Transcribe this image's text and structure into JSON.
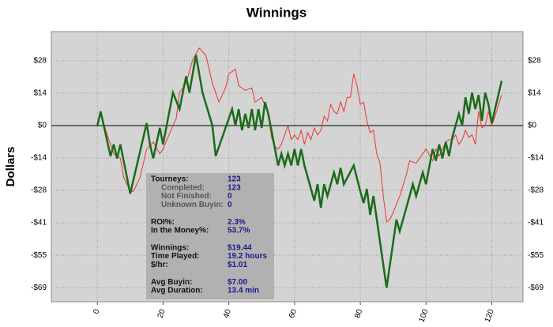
{
  "chart_data": {
    "type": "line",
    "title": "Winnings",
    "y_label": "Dollars",
    "xlim": [
      -14,
      129.5
    ],
    "ylim": [
      -75,
      40
    ],
    "xticks": [
      0,
      20,
      40,
      60,
      80,
      100,
      120
    ],
    "yticks": [
      {
        "value": 27.6,
        "label": "$28"
      },
      {
        "value": 13.8,
        "label": "$14"
      },
      {
        "value": 0,
        "label": "$0"
      },
      {
        "value": -13.8,
        "label": "-$14"
      },
      {
        "value": -27.6,
        "label": "-$28"
      },
      {
        "value": -41.4,
        "label": "-$41"
      },
      {
        "value": -55.2,
        "label": "-$55"
      },
      {
        "value": -69,
        "label": "-$69"
      }
    ],
    "grid": true,
    "series": [
      {
        "color": "#ee3333",
        "width": 1,
        "x": [
          0,
          1,
          3,
          5,
          7,
          8,
          10,
          11,
          13,
          15,
          17,
          19,
          20,
          23,
          24,
          25,
          27,
          29,
          31,
          33,
          35,
          37,
          39,
          40,
          41,
          42,
          43,
          45,
          47,
          48,
          50,
          52,
          53,
          54,
          55,
          56,
          58,
          59,
          60,
          61,
          62,
          63,
          64,
          65,
          66,
          67,
          68,
          69,
          70,
          71,
          72,
          73,
          74,
          75,
          76,
          77,
          78,
          79,
          80,
          81,
          82,
          83,
          84,
          85,
          86,
          87,
          88,
          89,
          90,
          92,
          94,
          95,
          97,
          98,
          100,
          102,
          103,
          104,
          105,
          106,
          107,
          108,
          109,
          110,
          111,
          112,
          113,
          114,
          115,
          116,
          117,
          118,
          119,
          120,
          121,
          123
        ],
        "values": [
          0,
          5,
          -4,
          -12,
          -14,
          -22,
          -28,
          -28,
          -22,
          -10,
          -7,
          -12,
          -10,
          0,
          3,
          14,
          18,
          28,
          33,
          30,
          18,
          10,
          16,
          22,
          23,
          24,
          17,
          15,
          16,
          10,
          12,
          5,
          -5,
          -9,
          -10,
          -8,
          0,
          -6,
          -4,
          -6,
          -2,
          -8,
          -3,
          -6,
          -1,
          -4,
          -2,
          4,
          2,
          9,
          6,
          5,
          10,
          6,
          12,
          12,
          22,
          17,
          9,
          10,
          2,
          -3,
          -2,
          -12,
          -16,
          -30,
          -41,
          -40,
          -37,
          -30,
          -21,
          -15,
          -16,
          -14,
          -10,
          -15,
          -10,
          -13,
          -10,
          -7,
          -6,
          -6,
          -4,
          -8,
          -6,
          -2,
          -5,
          -4,
          -8,
          6,
          -1,
          0,
          6,
          0,
          4,
          13
        ]
      },
      {
        "color": "#1a6b1a",
        "width": 2.5,
        "x": [
          0,
          1,
          4,
          5,
          6,
          7,
          10,
          15,
          16,
          17,
          19,
          20,
          23,
          25,
          27,
          28,
          30,
          32,
          35,
          36,
          41,
          42,
          43,
          44,
          45,
          46,
          47,
          48,
          49,
          50,
          51,
          52,
          55,
          56,
          57,
          58,
          59,
          60,
          61,
          62,
          63,
          66,
          67,
          68,
          69,
          70,
          72,
          73,
          74,
          75,
          78,
          80,
          81,
          82,
          83,
          84,
          88,
          91,
          92,
          94,
          96,
          97,
          99,
          100,
          102,
          103,
          104,
          105,
          106,
          107,
          108,
          110,
          111,
          112,
          113,
          114,
          115,
          116,
          117,
          118,
          119,
          120,
          123
        ],
        "values": [
          0,
          6,
          -13,
          -8,
          -14,
          -8,
          -29,
          1,
          -8,
          -14,
          -1,
          -8,
          14,
          7,
          21,
          14,
          30,
          14,
          0,
          -13,
          7,
          0,
          7,
          -2,
          5,
          -1,
          7,
          -2,
          7,
          -1,
          10,
          5,
          -17,
          -12,
          -17,
          -12,
          -17,
          -10,
          -17,
          -10,
          -17,
          -32,
          -25,
          -35,
          -25,
          -30,
          -20,
          -25,
          -18,
          -25,
          -17,
          -28,
          -33,
          -27,
          -38,
          -30,
          -69,
          -40,
          -45,
          -35,
          -25,
          -30,
          -20,
          -25,
          -10,
          -15,
          -8,
          -14,
          -7,
          -13,
          -5,
          5,
          0,
          12,
          5,
          14,
          7,
          13,
          2,
          14,
          9,
          1,
          19
        ]
      }
    ],
    "stats": [
      [
        {
          "label": "Tourneys:",
          "value": "123",
          "details": [
            {
              "label": "Completed:",
              "value": "123"
            },
            {
              "label": "Not Finished:",
              "value": "0"
            },
            {
              "label": "Unknown Buyin:",
              "value": "0"
            }
          ]
        }
      ],
      [
        {
          "label": "ROI%:",
          "value": "2.3%"
        },
        {
          "label": "In the Money%:",
          "value": "53.7%"
        }
      ],
      [
        {
          "label": "Winnings:",
          "value": "$19.44"
        },
        {
          "label": "Time Played:",
          "value": "19.2 hours"
        },
        {
          "label": "$/hr:",
          "value": "$1.01"
        }
      ],
      [
        {
          "label": "Avg Buyin:",
          "value": "$7.00"
        },
        {
          "label": "Avg Duration:",
          "value": "13.4 min"
        }
      ]
    ]
  }
}
